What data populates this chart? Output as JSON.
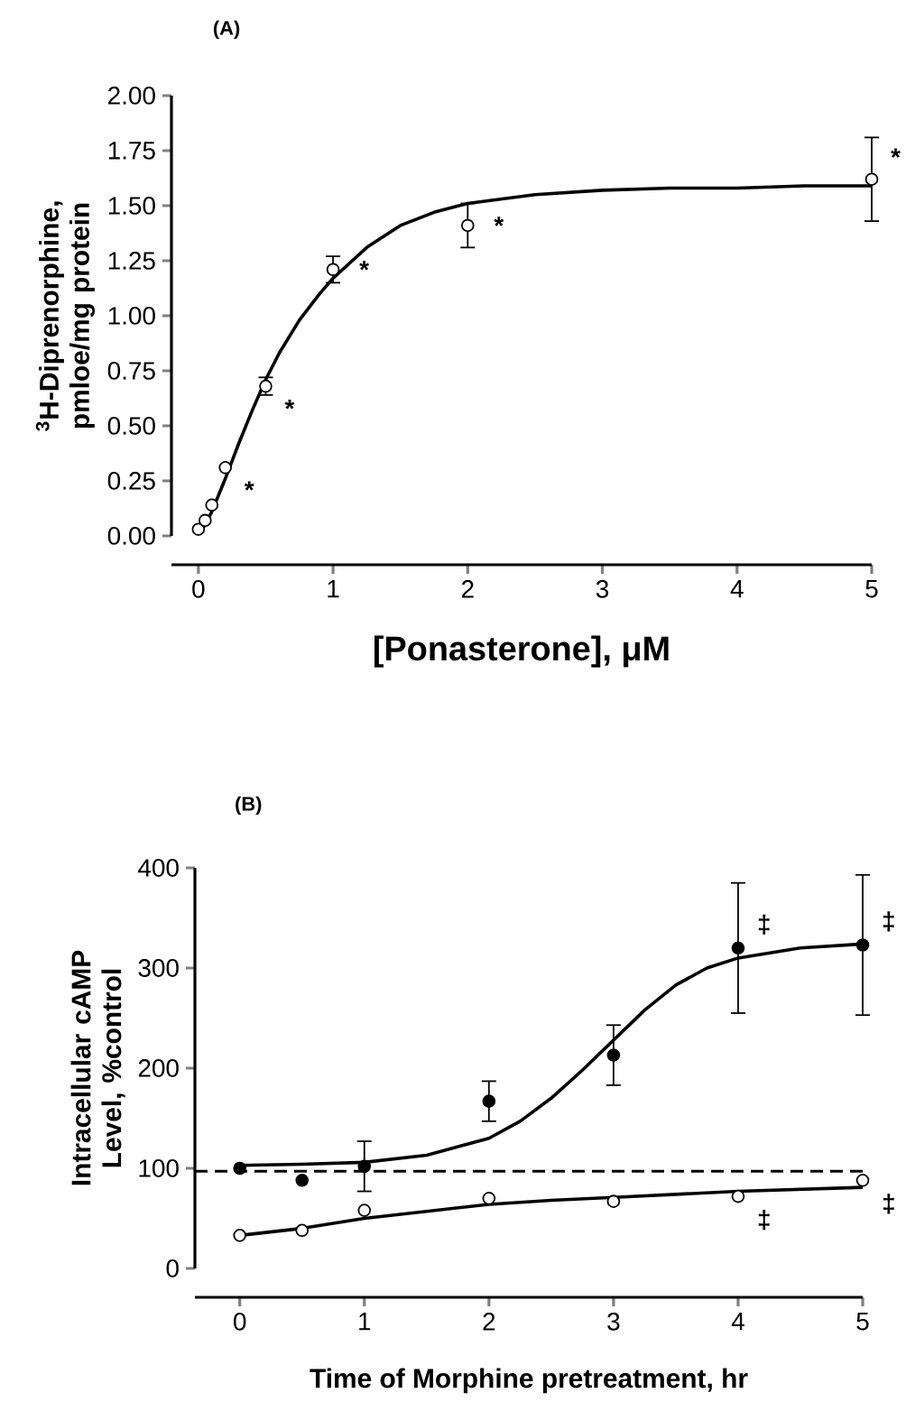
{
  "chart_data": [
    {
      "type": "scatter",
      "title": "(A)",
      "xlabel": "[Ponasterone], μM",
      "ylabel": "$^{3}$H-Diprenorphine, pmloe/mg protein",
      "xlim": [
        -0.2,
        5
      ],
      "ylim": [
        0,
        2
      ],
      "xticks": [
        0,
        1,
        2,
        3,
        4,
        5
      ],
      "yticks": [
        {
          "value": 0,
          "label": "0.00"
        },
        {
          "value": 0.25,
          "label": "0.25"
        },
        {
          "value": 0.5,
          "label": "0.50"
        },
        {
          "value": 0.75,
          "label": "0.75"
        },
        {
          "value": 1,
          "label": "1.00"
        },
        {
          "value": 1.25,
          "label": "1.25"
        },
        {
          "value": 1.5,
          "label": "1.50"
        },
        {
          "value": 1.75,
          "label": "1.75"
        },
        {
          "value": 2,
          "label": "2.00"
        }
      ],
      "marker": "circle",
      "series": [
        {
          "color": "#ffffff",
          "x": [
            0,
            0.05,
            0.1,
            0.2,
            0.5,
            1,
            2,
            5
          ],
          "values": [
            0.03,
            0.07,
            0.14,
            0.31,
            0.68,
            1.21,
            1.41,
            1.62
          ],
          "errors": [
            null,
            null,
            null,
            null,
            0.04,
            0.06,
            0.1,
            0.19
          ]
        },
        {
          "type": "line",
          "color": "#000000",
          "marker": "none",
          "x": [
            0,
            0.05,
            0.1,
            0.2,
            0.3,
            0.4,
            0.5,
            0.6,
            0.75,
            0.9,
            1,
            1.25,
            1.5,
            1.75,
            2,
            2.5,
            3,
            3.5,
            4,
            4.5,
            5
          ],
          "values": [
            0.01,
            0.05,
            0.11,
            0.26,
            0.42,
            0.57,
            0.71,
            0.83,
            0.98,
            1.1,
            1.17,
            1.31,
            1.41,
            1.47,
            1.51,
            1.55,
            1.57,
            1.58,
            1.58,
            1.59,
            1.59
          ]
        }
      ],
      "annotations": [
        {
          "text": "*",
          "x": 0.2,
          "y": 0.31
        },
        {
          "text": "*",
          "x": 0.5,
          "y": 0.68
        },
        {
          "text": "*",
          "x": 1,
          "y": 1.21
        },
        {
          "text": "*",
          "x": 2,
          "y": 1.41
        },
        {
          "text": "*",
          "x": 5,
          "y": 1.62
        }
      ]
    },
    {
      "type": "scatter",
      "title": "(B)",
      "xlabel": "Time of Morphine pretreatment, hr",
      "ylabel": "Intracellular cAMP Level, %control",
      "xlim": [
        -0.36,
        5
      ],
      "ylim": [
        0,
        400
      ],
      "xticks": [
        0,
        1,
        2,
        3,
        4,
        5
      ],
      "yticks": [
        0,
        100,
        200,
        300,
        400
      ],
      "marker": "circle",
      "series": [
        {
          "color": "#000000",
          "x": [
            0,
            0.5,
            1,
            2,
            3,
            4,
            5
          ],
          "values": [
            100,
            88,
            102,
            167,
            213,
            320,
            323
          ],
          "errors": [
            null,
            null,
            25,
            20,
            30,
            65,
            70
          ]
        },
        {
          "color": "#ffffff",
          "x": [
            0,
            0.5,
            1,
            2,
            3,
            4,
            5
          ],
          "values": [
            33,
            38,
            58,
            70,
            67,
            72,
            88
          ]
        },
        {
          "type": "line",
          "color": "#000000",
          "marker": "none",
          "x": [
            0,
            0.5,
            1,
            1.5,
            2,
            2.25,
            2.5,
            2.75,
            3,
            3.25,
            3.5,
            3.75,
            4,
            4.5,
            5
          ],
          "values": [
            103,
            104,
            106,
            113,
            130,
            147,
            170,
            198,
            228,
            258,
            283,
            300,
            310,
            320,
            324
          ]
        },
        {
          "type": "line",
          "color": "#000000",
          "marker": "none",
          "x": [
            0,
            0.5,
            1,
            1.5,
            2,
            2.5,
            3,
            3.5,
            4,
            4.5,
            5
          ],
          "values": [
            33,
            40,
            50,
            57,
            64,
            68,
            71,
            74,
            77,
            79,
            81
          ]
        }
      ],
      "ref_lines": [
        {
          "axis": "y",
          "value": 97,
          "line_style": "dashed",
          "color": "#000000"
        }
      ],
      "annotations": [
        {
          "text": "‡",
          "x": 4,
          "y": 320
        },
        {
          "text": "‡",
          "x": 5,
          "y": 323
        },
        {
          "text": "‡",
          "x": 4,
          "y": 72
        },
        {
          "text": "‡",
          "x": 5,
          "y": 88
        }
      ]
    }
  ]
}
